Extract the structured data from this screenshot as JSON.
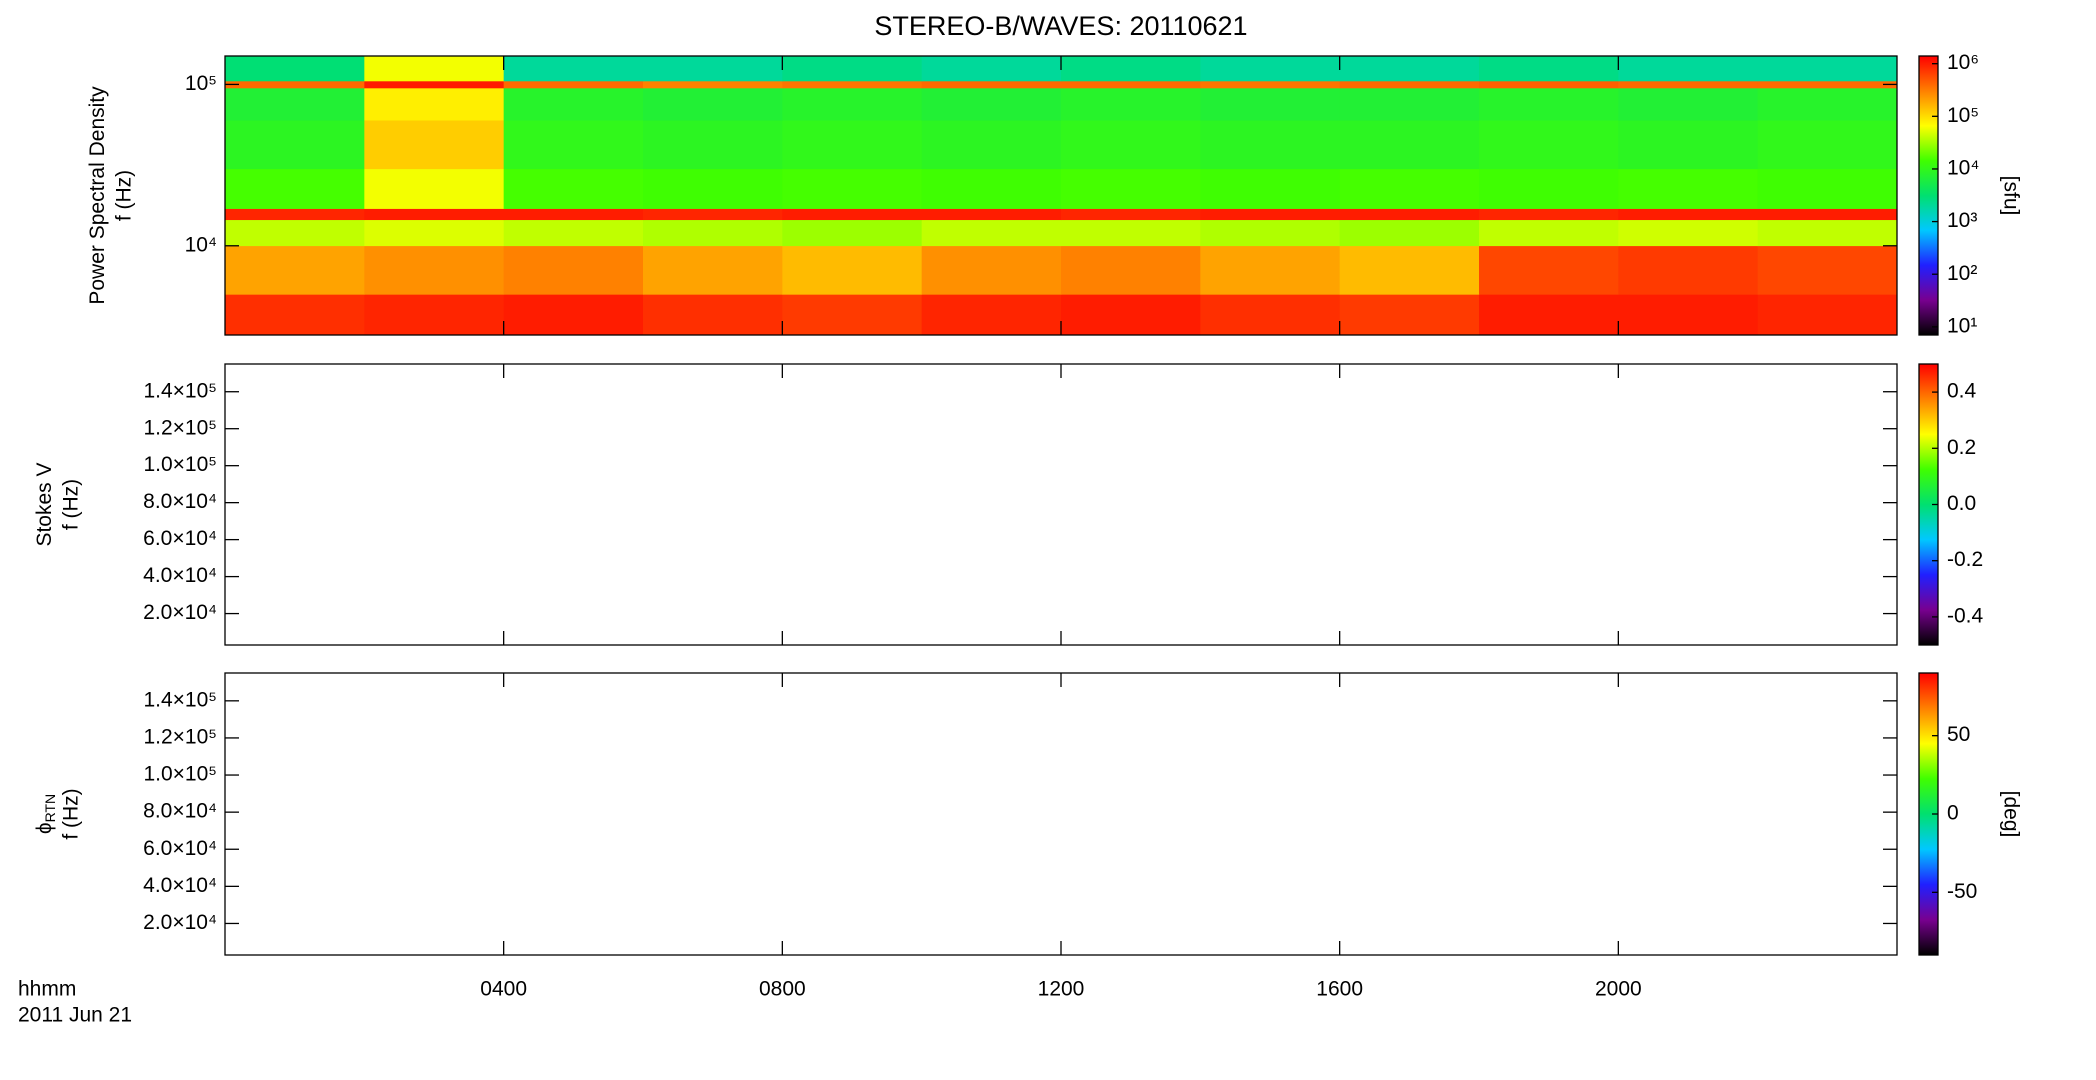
{
  "chart_data": [
    {
      "type": "heatmap",
      "title": "STEREO-B/WAVES: 20110621",
      "ylabel": "Power Spectral Density",
      "ylabel2": "f (Hz)",
      "ylog": true,
      "ylim": [
        2800,
        150000
      ],
      "yticks": [
        {
          "value": 10000,
          "label": "10⁴"
        },
        {
          "value": 100000,
          "label": "10⁵"
        }
      ],
      "xlim": [
        0,
        24
      ],
      "x_edges": [
        0,
        2,
        4,
        6,
        8,
        10,
        12,
        14,
        16,
        18,
        20,
        22,
        24
      ],
      "y_edges": [
        2800,
        5000,
        10000,
        14500,
        17000,
        30000,
        60000,
        95000,
        105000,
        150000
      ],
      "z": [
        [
          800000,
          900000,
          1000000,
          800000,
          700000,
          900000,
          1000000,
          800000,
          700000,
          1000000,
          1000000,
          900000
        ],
        [
          200000,
          250000,
          300000,
          200000,
          150000,
          250000,
          300000,
          200000,
          150000,
          600000,
          700000,
          600000
        ],
        [
          40000,
          50000,
          40000,
          35000,
          30000,
          40000,
          40000,
          35000,
          30000,
          40000,
          45000,
          40000
        ],
        [
          900000,
          1000000,
          1000000,
          900000,
          1000000,
          1000000,
          900000,
          1000000,
          1000000,
          900000,
          1000000,
          1000000
        ],
        [
          15000,
          60000,
          15000,
          14000,
          15000,
          14000,
          15000,
          14000,
          15000,
          14000,
          15000,
          14000
        ],
        [
          9000,
          120000,
          10000,
          9000,
          10000,
          9000,
          10000,
          9000,
          9000,
          10000,
          9000,
          10000
        ],
        [
          7000,
          80000,
          8000,
          7000,
          8000,
          7000,
          8000,
          7000,
          7000,
          8000,
          7000,
          8000
        ],
        [
          400000,
          1000000,
          400000,
          300000,
          350000,
          400000,
          400000,
          350000,
          400000,
          450000,
          400000,
          400000
        ],
        [
          3000,
          60000,
          2000,
          2000,
          2500,
          2000,
          2500,
          2000,
          2000,
          2500,
          2000,
          2000
        ]
      ],
      "colorbar": {
        "log": true,
        "lim": [
          7,
          1400000
        ],
        "label": "[sfu]",
        "ticks": [
          {
            "value": 10,
            "label": "10¹"
          },
          {
            "value": 100,
            "label": "10²"
          },
          {
            "value": 1000,
            "label": "10³"
          },
          {
            "value": 10000,
            "label": "10⁴"
          },
          {
            "value": 100000,
            "label": "10⁵"
          },
          {
            "value": 1000000,
            "label": "10⁶"
          }
        ]
      },
      "colormap": [
        "#000000",
        "#780090",
        "#2020ff",
        "#00c8ff",
        "#00e070",
        "#40ff00",
        "#ffff00",
        "#ff8000",
        "#ff0000"
      ]
    },
    {
      "type": "heatmap",
      "ylabel": "Stokes V",
      "ylabel2": "f (Hz)",
      "ylog": false,
      "ylim": [
        3000,
        155000
      ],
      "xlim": [
        0,
        24
      ],
      "yticks": [
        {
          "value": 20000,
          "label": "2.0×10⁴"
        },
        {
          "value": 40000,
          "label": "4.0×10⁴"
        },
        {
          "value": 60000,
          "label": "6.0×10⁴"
        },
        {
          "value": 80000,
          "label": "8.0×10⁴"
        },
        {
          "value": 100000,
          "label": "1.0×10⁵"
        },
        {
          "value": 120000,
          "label": "1.2×10⁵"
        },
        {
          "value": 140000,
          "label": "1.4×10⁵"
        }
      ],
      "colorbar": {
        "log": false,
        "lim": [
          -0.5,
          0.5
        ],
        "ticks": [
          -0.4,
          -0.2,
          {
            "value": 0,
            "label": "0.0"
          },
          0.2,
          0.4
        ]
      },
      "colormap": [
        "#000000",
        "#780090",
        "#2020ff",
        "#00c8ff",
        "#00e070",
        "#40ff00",
        "#ffff00",
        "#ff8000",
        "#ff0000"
      ]
    },
    {
      "type": "heatmap",
      "ylabel": "ϕ",
      "ylabel_sub": "RTN",
      "ylabel2": "f (Hz)",
      "ylog": false,
      "ylim": [
        3000,
        155000
      ],
      "xlim": [
        0,
        24
      ],
      "yticks": [
        {
          "value": 20000,
          "label": "2.0×10⁴"
        },
        {
          "value": 40000,
          "label": "4.0×10⁴"
        },
        {
          "value": 60000,
          "label": "6.0×10⁴"
        },
        {
          "value": 80000,
          "label": "8.0×10⁴"
        },
        {
          "value": 100000,
          "label": "1.0×10⁵"
        },
        {
          "value": 120000,
          "label": "1.2×10⁵"
        },
        {
          "value": 140000,
          "label": "1.4×10⁵"
        }
      ],
      "xticks": [
        {
          "value": 4,
          "label": "0400"
        },
        {
          "value": 8,
          "label": "0800"
        },
        {
          "value": 12,
          "label": "1200"
        },
        {
          "value": 16,
          "label": "1600"
        },
        {
          "value": 20,
          "label": "2000"
        }
      ],
      "xlabel_lines": [
        "hhmm",
        "2011 Jun 21"
      ],
      "colorbar": {
        "log": false,
        "lim": [
          -90,
          90
        ],
        "label": "[deg]",
        "ticks": [
          -50,
          0,
          50
        ]
      },
      "colormap": [
        "#000000",
        "#780090",
        "#2020ff",
        "#00c8ff",
        "#00e070",
        "#40ff00",
        "#ffff00",
        "#ff8000",
        "#ff0000"
      ]
    }
  ]
}
